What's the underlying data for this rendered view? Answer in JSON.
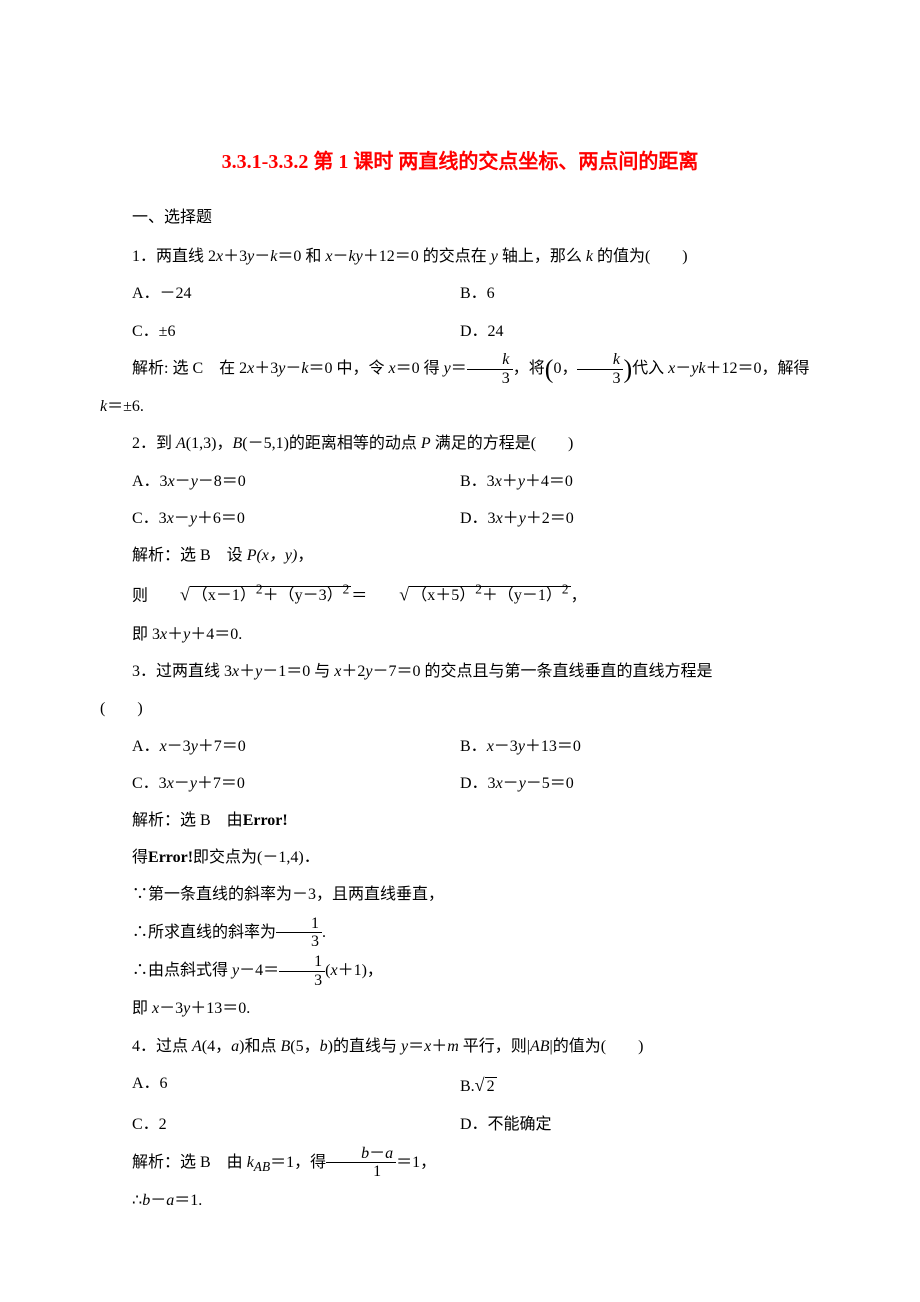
{
  "title": "3.3.1-3.3.2 第 1 课时  两直线的交点坐标、两点间的距离",
  "section1": "一、选择题",
  "q1": {
    "stem_pre": "1．两直线 2",
    "stem_math1": "x",
    "stem_mid1": "＋3",
    "stem_math2": "y",
    "stem_mid2": "－",
    "stem_math3": "k",
    "stem_mid3": "＝0 和 ",
    "stem_math4": "x",
    "stem_mid4": "－",
    "stem_math5": "ky",
    "stem_mid5": "＋12＝0 的交点在 ",
    "stem_math6": "y",
    "stem_mid6": " 轴上，那么 ",
    "stem_math7": "k",
    "stem_end": " 的值为(　　)",
    "A": "A．－24",
    "B": "B．6",
    "C": "C．±6",
    "D": "D．24",
    "sol_p1": "解析:  选 C　在 2",
    "sol_x": "x",
    "sol_p2": "＋3",
    "sol_y": "y",
    "sol_p3": "－",
    "sol_k": "k",
    "sol_p4": "＝0 中，令 ",
    "sol_p5": "＝0 得 ",
    "sol_p6": "＝",
    "sol_frac_num": "k",
    "sol_frac_den": "3",
    "sol_p7": "，将",
    "sol_tuple_a": "0，",
    "sol_p8": "代入 ",
    "sol_p9": "＋12＝0，解得",
    "sol_line2": "k",
    "sol_line2_end": "＝±6."
  },
  "q2": {
    "stem": "2．到 ",
    "A_pt": "A",
    "A_coord": "(1,3)，",
    "B_pt": "B",
    "B_coord": "(－5,1)的距离相等的动点 ",
    "P_pt": "P",
    "P_end": " 满足的方程是(　　)",
    "optA_pre": "A．3",
    "optA_mid": "－",
    "optA_end": "－8＝0",
    "optB_pre": "B．3",
    "optB_mid": "＋",
    "optB_end": "＋4＝0",
    "optC_pre": "C．3",
    "optC_mid": "－",
    "optC_end": "＋6＝0",
    "optD_pre": "D．3",
    "optD_mid": "＋",
    "optD_end": "＋2＝0",
    "sol1": "解析：选 B　设 ",
    "sol1_P": "P",
    "sol1_xy": "(x，y)",
    "sol1_end": "，",
    "sol2_pre": "则",
    "sol2_r1a": "（x－1）",
    "sol2_r1b": "＋（y－3）",
    "sol2_eq": "＝",
    "sol2_r2a": "（x＋5）",
    "sol2_r2b": "＋（y－1）",
    "sol2_end": "，",
    "sol3": "即 3",
    "sol3_end": "＋4＝0."
  },
  "q3": {
    "stem": "3．过两直线 3",
    "stem_mid1": "＋",
    "stem_mid2": "－1＝0 与 ",
    "stem_mid3": "＋2",
    "stem_mid4": "－7＝0 的交点且与第一条直线垂直的直线方程是",
    "stem_end": "(　　)",
    "optA": "A．",
    "optA_eq": "－3",
    "optA_end": "＋7＝0",
    "optB": "B．",
    "optB_eq": "－3",
    "optB_end": "＋13＝0",
    "optC": "C．3",
    "optC_eq": "－",
    "optC_end": "＋7＝0",
    "optD": "D．3",
    "optD_eq": "－",
    "optD_end": "－5＝0",
    "sol1": "解析：选 B　由",
    "err": "Error!",
    "sol2": "得",
    "sol2_end": "即交点为(－1,4)．",
    "sol3": "第一条直线的斜率为－3，且两直线垂直，",
    "sol4": "所求直线的斜率为",
    "sol4_num": "1",
    "sol4_den": "3",
    "sol4_end": ".",
    "sol5": "由点斜式得 ",
    "sol5_mid": "－4＝",
    "sol5_num": "1",
    "sol5_den": "3",
    "sol5_par": "(",
    "sol5_end": "＋1)，",
    "sol6": "即 ",
    "sol6_eq": "－3",
    "sol6_end": "＋13＝0."
  },
  "q4": {
    "stem": "4．过点 ",
    "A": "A",
    "A_c": "(4，",
    "a": "a",
    "mid1": ")和点 ",
    "B": "B",
    "B_c": "(5，",
    "b": "b",
    "mid2": ")的直线与 ",
    "eq": "＝",
    "mid3": "＋",
    "m": "m",
    "mid4": " 平行，则|",
    "AB": "AB",
    "end": "|的值为(　　)",
    "optA": "A．6",
    "optB": "B.",
    "optB_r": "2",
    "optC": "C．2",
    "optD": "D．不能确定",
    "sol1": "解析：选 B　由 ",
    "kAB": "k",
    "kAB_sub": "AB",
    "sol1_mid": "＝1，得",
    "sol1_num_b": "b",
    "sol1_num_mid": "－",
    "sol1_num_a": "a",
    "sol1_den": "1",
    "sol1_end": "＝1，",
    "sol2_b": "b",
    "sol2_mid": "－",
    "sol2_a": "a",
    "sol2_end": "＝1."
  },
  "x": "x",
  "y": "y"
}
